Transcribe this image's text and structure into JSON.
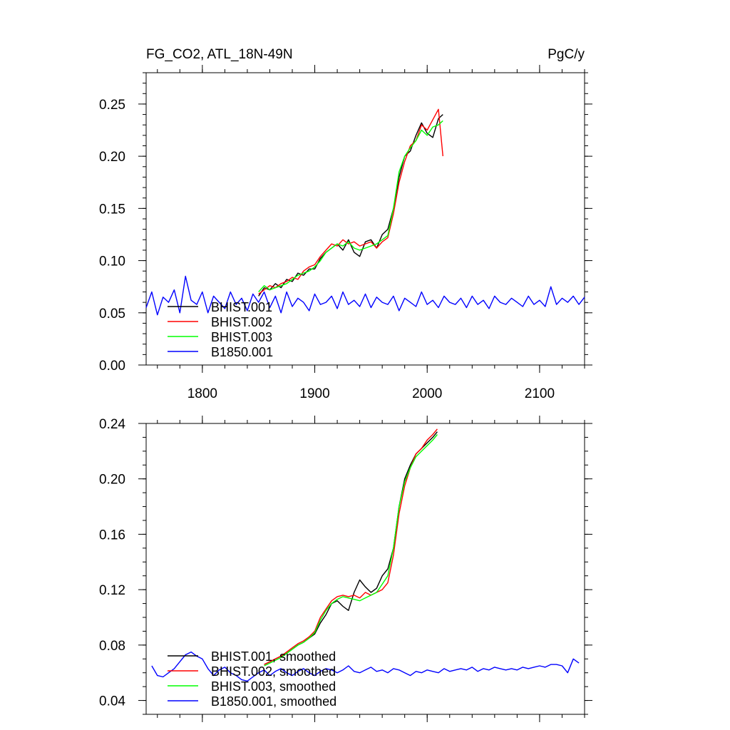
{
  "header": {
    "left": "FG_CO2, ATL_18N-49N",
    "right": "PgC/y"
  },
  "chart_data": [
    {
      "type": "line",
      "title": "FG_CO2, ATL_18N-49N",
      "units": "PgC/y",
      "xlim": [
        1750,
        2140
      ],
      "ylim": [
        0.0,
        0.28
      ],
      "xticks": [
        1800,
        1900,
        2000,
        2100
      ],
      "xtick_labels": [
        "1800",
        "1900",
        "2000",
        "2100"
      ],
      "yticks": [
        0.0,
        0.05,
        0.1,
        0.15,
        0.2,
        0.25
      ],
      "ytick_labels": [
        "0.00",
        "0.05",
        "0.10",
        "0.15",
        "0.20",
        "0.25"
      ],
      "legend_position": "bottom-left",
      "series": [
        {
          "name": "BHIST.001",
          "color": "#000000",
          "x": [
            1850,
            1855,
            1860,
            1865,
            1870,
            1875,
            1880,
            1885,
            1890,
            1895,
            1900,
            1905,
            1910,
            1915,
            1920,
            1925,
            1930,
            1935,
            1940,
            1945,
            1950,
            1955,
            1960,
            1965,
            1970,
            1975,
            1980,
            1985,
            1990,
            1995,
            2000,
            2005,
            2010,
            2014
          ],
          "y": [
            0.066,
            0.074,
            0.072,
            0.078,
            0.074,
            0.082,
            0.08,
            0.088,
            0.086,
            0.092,
            0.092,
            0.102,
            0.108,
            0.112,
            0.116,
            0.11,
            0.12,
            0.108,
            0.104,
            0.118,
            0.12,
            0.112,
            0.125,
            0.13,
            0.15,
            0.18,
            0.2,
            0.205,
            0.22,
            0.232,
            0.222,
            0.218,
            0.236,
            0.24
          ]
        },
        {
          "name": "BHIST.002",
          "color": "#ff0000",
          "x": [
            1850,
            1855,
            1860,
            1865,
            1870,
            1875,
            1880,
            1885,
            1890,
            1895,
            1900,
            1905,
            1910,
            1915,
            1920,
            1925,
            1930,
            1935,
            1940,
            1945,
            1950,
            1955,
            1960,
            1965,
            1970,
            1975,
            1980,
            1985,
            1990,
            1995,
            2000,
            2005,
            2010,
            2014
          ],
          "y": [
            0.068,
            0.072,
            0.076,
            0.074,
            0.078,
            0.08,
            0.084,
            0.082,
            0.09,
            0.094,
            0.096,
            0.104,
            0.11,
            0.116,
            0.114,
            0.12,
            0.116,
            0.118,
            0.114,
            0.116,
            0.118,
            0.112,
            0.118,
            0.122,
            0.145,
            0.175,
            0.195,
            0.21,
            0.215,
            0.23,
            0.225,
            0.235,
            0.245,
            0.2
          ]
        },
        {
          "name": "BHIST.003",
          "color": "#00ff00",
          "x": [
            1850,
            1855,
            1860,
            1865,
            1870,
            1875,
            1880,
            1885,
            1890,
            1895,
            1900,
            1905,
            1910,
            1915,
            1920,
            1925,
            1930,
            1935,
            1940,
            1945,
            1950,
            1955,
            1960,
            1965,
            1970,
            1975,
            1980,
            1985,
            1990,
            1995,
            2000,
            2005,
            2010,
            2014
          ],
          "y": [
            0.07,
            0.076,
            0.072,
            0.074,
            0.076,
            0.078,
            0.082,
            0.086,
            0.088,
            0.09,
            0.094,
            0.1,
            0.108,
            0.112,
            0.116,
            0.114,
            0.118,
            0.112,
            0.11,
            0.112,
            0.114,
            0.116,
            0.12,
            0.124,
            0.15,
            0.185,
            0.2,
            0.208,
            0.215,
            0.225,
            0.22,
            0.228,
            0.23,
            0.234
          ]
        },
        {
          "name": "B1850.001",
          "color": "#0000ff",
          "x": [
            1750,
            1755,
            1760,
            1765,
            1770,
            1775,
            1780,
            1785,
            1790,
            1795,
            1800,
            1805,
            1810,
            1815,
            1820,
            1825,
            1830,
            1835,
            1840,
            1845,
            1850,
            1855,
            1860,
            1865,
            1870,
            1875,
            1880,
            1885,
            1890,
            1895,
            1900,
            1905,
            1910,
            1915,
            1920,
            1925,
            1930,
            1935,
            1940,
            1945,
            1950,
            1955,
            1960,
            1965,
            1970,
            1975,
            1980,
            1985,
            1990,
            1995,
            2000,
            2005,
            2010,
            2015,
            2020,
            2025,
            2030,
            2035,
            2040,
            2045,
            2050,
            2055,
            2060,
            2065,
            2070,
            2075,
            2080,
            2085,
            2090,
            2095,
            2100,
            2105,
            2110,
            2115,
            2120,
            2125,
            2130,
            2135,
            2140
          ],
          "y": [
            0.055,
            0.07,
            0.048,
            0.065,
            0.06,
            0.072,
            0.05,
            0.085,
            0.062,
            0.058,
            0.07,
            0.05,
            0.066,
            0.06,
            0.054,
            0.07,
            0.058,
            0.064,
            0.052,
            0.068,
            0.06,
            0.07,
            0.055,
            0.066,
            0.05,
            0.07,
            0.056,
            0.064,
            0.06,
            0.052,
            0.068,
            0.058,
            0.06,
            0.066,
            0.054,
            0.07,
            0.058,
            0.062,
            0.056,
            0.068,
            0.055,
            0.065,
            0.06,
            0.058,
            0.066,
            0.052,
            0.064,
            0.06,
            0.056,
            0.07,
            0.058,
            0.062,
            0.055,
            0.066,
            0.06,
            0.058,
            0.064,
            0.055,
            0.066,
            0.058,
            0.062,
            0.054,
            0.066,
            0.06,
            0.058,
            0.064,
            0.06,
            0.056,
            0.066,
            0.058,
            0.062,
            0.056,
            0.075,
            0.058,
            0.064,
            0.06,
            0.066,
            0.058,
            0.065
          ]
        }
      ]
    },
    {
      "type": "line",
      "xlim": [
        1750,
        2140
      ],
      "ylim": [
        0.03,
        0.24
      ],
      "xticks": [
        1800,
        1900,
        2000,
        2100
      ],
      "yticks": [
        0.04,
        0.08,
        0.12,
        0.16,
        0.2,
        0.24
      ],
      "ytick_labels": [
        "0.04",
        "0.08",
        "0.12",
        "0.16",
        "0.20",
        "0.24"
      ],
      "legend_position": "bottom-left",
      "series": [
        {
          "name": "BHIST.001, smoothed",
          "color": "#000000",
          "x": [
            1855,
            1860,
            1865,
            1870,
            1875,
            1880,
            1885,
            1890,
            1895,
            1900,
            1905,
            1910,
            1915,
            1920,
            1925,
            1930,
            1935,
            1940,
            1945,
            1950,
            1955,
            1960,
            1965,
            1970,
            1975,
            1980,
            1985,
            1990,
            1995,
            2000,
            2005,
            2009
          ],
          "y": [
            0.066,
            0.068,
            0.07,
            0.072,
            0.074,
            0.077,
            0.08,
            0.082,
            0.085,
            0.088,
            0.096,
            0.102,
            0.11,
            0.112,
            0.108,
            0.105,
            0.118,
            0.127,
            0.122,
            0.118,
            0.121,
            0.13,
            0.135,
            0.15,
            0.18,
            0.2,
            0.21,
            0.218,
            0.222,
            0.226,
            0.23,
            0.234
          ]
        },
        {
          "name": "BHIST.002, smoothed",
          "color": "#ff0000",
          "x": [
            1855,
            1860,
            1865,
            1870,
            1875,
            1880,
            1885,
            1890,
            1895,
            1900,
            1905,
            1910,
            1915,
            1920,
            1925,
            1930,
            1935,
            1940,
            1945,
            1950,
            1955,
            1960,
            1965,
            1970,
            1975,
            1980,
            1985,
            1990,
            1995,
            2000,
            2005,
            2009
          ],
          "y": [
            0.066,
            0.068,
            0.07,
            0.072,
            0.075,
            0.078,
            0.081,
            0.083,
            0.086,
            0.09,
            0.1,
            0.106,
            0.112,
            0.115,
            0.116,
            0.115,
            0.116,
            0.114,
            0.118,
            0.116,
            0.118,
            0.12,
            0.125,
            0.145,
            0.175,
            0.195,
            0.208,
            0.218,
            0.222,
            0.228,
            0.232,
            0.236
          ]
        },
        {
          "name": "BHIST.003, smoothed",
          "color": "#00ff00",
          "x": [
            1855,
            1860,
            1865,
            1870,
            1875,
            1880,
            1885,
            1890,
            1895,
            1900,
            1905,
            1910,
            1915,
            1920,
            1925,
            1930,
            1935,
            1940,
            1945,
            1950,
            1955,
            1960,
            1965,
            1970,
            1975,
            1980,
            1985,
            1990,
            1995,
            2000,
            2005,
            2009
          ],
          "y": [
            0.065,
            0.067,
            0.069,
            0.071,
            0.074,
            0.077,
            0.08,
            0.082,
            0.085,
            0.089,
            0.098,
            0.105,
            0.11,
            0.113,
            0.115,
            0.114,
            0.113,
            0.112,
            0.114,
            0.116,
            0.118,
            0.124,
            0.13,
            0.15,
            0.18,
            0.198,
            0.208,
            0.216,
            0.22,
            0.224,
            0.228,
            0.232
          ]
        },
        {
          "name": "B1850.001, smoothed",
          "color": "#0000ff",
          "x": [
            1755,
            1760,
            1765,
            1770,
            1775,
            1780,
            1785,
            1790,
            1795,
            1800,
            1805,
            1810,
            1815,
            1820,
            1825,
            1830,
            1835,
            1840,
            1845,
            1850,
            1855,
            1860,
            1865,
            1870,
            1875,
            1880,
            1885,
            1890,
            1895,
            1900,
            1905,
            1910,
            1915,
            1920,
            1925,
            1930,
            1935,
            1940,
            1945,
            1950,
            1955,
            1960,
            1965,
            1970,
            1975,
            1980,
            1985,
            1990,
            1995,
            2000,
            2005,
            2010,
            2015,
            2020,
            2025,
            2030,
            2035,
            2040,
            2045,
            2050,
            2055,
            2060,
            2065,
            2070,
            2075,
            2080,
            2085,
            2090,
            2095,
            2100,
            2105,
            2110,
            2115,
            2120,
            2125,
            2130,
            2135
          ],
          "y": [
            0.065,
            0.058,
            0.057,
            0.06,
            0.063,
            0.068,
            0.073,
            0.075,
            0.072,
            0.07,
            0.063,
            0.058,
            0.062,
            0.064,
            0.06,
            0.058,
            0.055,
            0.054,
            0.057,
            0.06,
            0.062,
            0.058,
            0.061,
            0.063,
            0.06,
            0.058,
            0.061,
            0.063,
            0.06,
            0.058,
            0.061,
            0.063,
            0.062,
            0.06,
            0.062,
            0.065,
            0.061,
            0.06,
            0.062,
            0.064,
            0.061,
            0.062,
            0.06,
            0.063,
            0.062,
            0.06,
            0.058,
            0.061,
            0.06,
            0.062,
            0.061,
            0.06,
            0.063,
            0.061,
            0.062,
            0.063,
            0.062,
            0.064,
            0.061,
            0.063,
            0.062,
            0.064,
            0.063,
            0.062,
            0.063,
            0.062,
            0.064,
            0.063,
            0.064,
            0.065,
            0.064,
            0.066,
            0.066,
            0.065,
            0.06,
            0.07,
            0.067
          ]
        }
      ]
    }
  ]
}
